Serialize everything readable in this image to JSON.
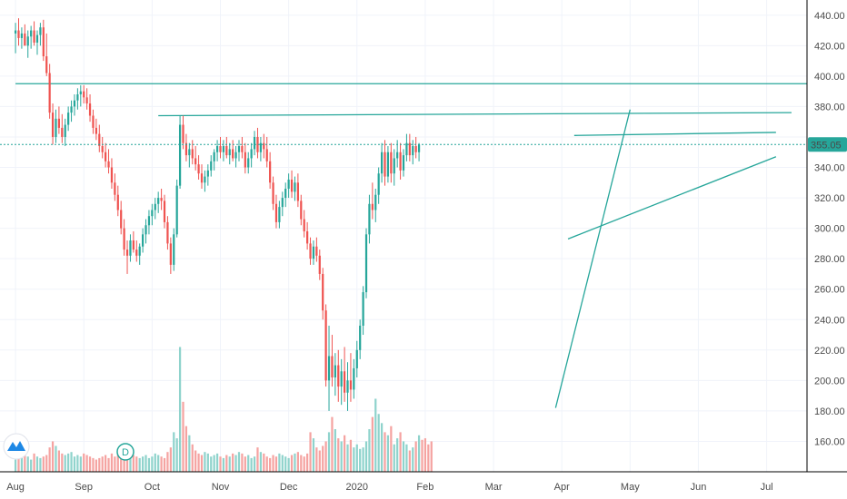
{
  "chart_data": {
    "type": "candlestick",
    "ylim": [
      140,
      450
    ],
    "y_ticks": [
      "440.00",
      "420.00",
      "400.00",
      "380.00",
      "360.00",
      "340.00",
      "320.00",
      "300.00",
      "280.00",
      "260.00",
      "240.00",
      "220.00",
      "200.00",
      "180.00",
      "160.00"
    ],
    "y_tick_values": [
      440,
      420,
      400,
      380,
      360,
      340,
      320,
      300,
      280,
      260,
      240,
      220,
      200,
      180,
      160
    ],
    "x_ticks": [
      "Aug",
      "Sep",
      "Oct",
      "Nov",
      "Dec",
      "2020",
      "Feb",
      "Mar",
      "Apr",
      "May",
      "Jun",
      "Jul"
    ],
    "x_tick_index": [
      0,
      22,
      44,
      66,
      88,
      110,
      132,
      154,
      176,
      198,
      220,
      242
    ],
    "x_domain": [
      -5,
      255
    ],
    "last_price": 355.05,
    "last_price_label": "355.05",
    "colors": {
      "up": "#26a69a",
      "down": "#ef5350",
      "up_vol": "#8fd3cc",
      "down_vol": "#f5a3a1",
      "line": "#26a69a",
      "price_label": "#26a69a",
      "grid": "#f0f3fa",
      "axis": "#000000"
    },
    "candles": [
      {
        "o": 428,
        "h": 435,
        "l": 415,
        "c": 430
      },
      {
        "o": 430,
        "h": 438,
        "l": 420,
        "c": 425
      },
      {
        "o": 425,
        "h": 432,
        "l": 418,
        "c": 428
      },
      {
        "o": 428,
        "h": 434,
        "l": 420,
        "c": 420
      },
      {
        "o": 420,
        "h": 430,
        "l": 412,
        "c": 426
      },
      {
        "o": 426,
        "h": 433,
        "l": 418,
        "c": 430
      },
      {
        "o": 430,
        "h": 436,
        "l": 420,
        "c": 422
      },
      {
        "o": 422,
        "h": 430,
        "l": 414,
        "c": 427
      },
      {
        "o": 427,
        "h": 435,
        "l": 420,
        "c": 432
      },
      {
        "o": 432,
        "h": 437,
        "l": 410,
        "c": 413
      },
      {
        "o": 413,
        "h": 428,
        "l": 400,
        "c": 402
      },
      {
        "o": 402,
        "h": 408,
        "l": 372,
        "c": 376
      },
      {
        "o": 376,
        "h": 382,
        "l": 355,
        "c": 360
      },
      {
        "o": 360,
        "h": 378,
        "l": 356,
        "c": 372
      },
      {
        "o": 372,
        "h": 380,
        "l": 362,
        "c": 366
      },
      {
        "o": 366,
        "h": 375,
        "l": 356,
        "c": 360
      },
      {
        "o": 360,
        "h": 372,
        "l": 354,
        "c": 368
      },
      {
        "o": 368,
        "h": 380,
        "l": 364,
        "c": 376
      },
      {
        "o": 376,
        "h": 384,
        "l": 370,
        "c": 380
      },
      {
        "o": 380,
        "h": 388,
        "l": 374,
        "c": 384
      },
      {
        "o": 384,
        "h": 392,
        "l": 378,
        "c": 388
      },
      {
        "o": 388,
        "h": 394,
        "l": 380,
        "c": 390
      },
      {
        "o": 390,
        "h": 394,
        "l": 382,
        "c": 386
      },
      {
        "o": 386,
        "h": 392,
        "l": 378,
        "c": 382
      },
      {
        "o": 382,
        "h": 388,
        "l": 370,
        "c": 374
      },
      {
        "o": 374,
        "h": 378,
        "l": 362,
        "c": 366
      },
      {
        "o": 366,
        "h": 372,
        "l": 358,
        "c": 362
      },
      {
        "o": 362,
        "h": 368,
        "l": 350,
        "c": 354
      },
      {
        "o": 354,
        "h": 360,
        "l": 346,
        "c": 350
      },
      {
        "o": 350,
        "h": 356,
        "l": 340,
        "c": 344
      },
      {
        "o": 344,
        "h": 352,
        "l": 336,
        "c": 340
      },
      {
        "o": 340,
        "h": 346,
        "l": 326,
        "c": 330
      },
      {
        "o": 330,
        "h": 336,
        "l": 318,
        "c": 322
      },
      {
        "o": 322,
        "h": 328,
        "l": 308,
        "c": 312
      },
      {
        "o": 312,
        "h": 318,
        "l": 296,
        "c": 300
      },
      {
        "o": 300,
        "h": 306,
        "l": 282,
        "c": 286
      },
      {
        "o": 286,
        "h": 292,
        "l": 270,
        "c": 282
      },
      {
        "o": 282,
        "h": 296,
        "l": 278,
        "c": 292
      },
      {
        "o": 292,
        "h": 298,
        "l": 284,
        "c": 286
      },
      {
        "o": 286,
        "h": 292,
        "l": 278,
        "c": 282
      },
      {
        "o": 282,
        "h": 290,
        "l": 276,
        "c": 288
      },
      {
        "o": 288,
        "h": 300,
        "l": 284,
        "c": 296
      },
      {
        "o": 296,
        "h": 306,
        "l": 290,
        "c": 302
      },
      {
        "o": 302,
        "h": 312,
        "l": 296,
        "c": 308
      },
      {
        "o": 308,
        "h": 316,
        "l": 302,
        "c": 312
      },
      {
        "o": 312,
        "h": 320,
        "l": 306,
        "c": 316
      },
      {
        "o": 316,
        "h": 324,
        "l": 310,
        "c": 320
      },
      {
        "o": 320,
        "h": 326,
        "l": 312,
        "c": 318
      },
      {
        "o": 318,
        "h": 322,
        "l": 300,
        "c": 304
      },
      {
        "o": 304,
        "h": 308,
        "l": 286,
        "c": 290
      },
      {
        "o": 290,
        "h": 294,
        "l": 270,
        "c": 276
      },
      {
        "o": 276,
        "h": 300,
        "l": 272,
        "c": 296
      },
      {
        "o": 296,
        "h": 332,
        "l": 294,
        "c": 328
      },
      {
        "o": 328,
        "h": 374,
        "l": 326,
        "c": 368
      },
      {
        "o": 368,
        "h": 374,
        "l": 352,
        "c": 356
      },
      {
        "o": 356,
        "h": 362,
        "l": 344,
        "c": 348
      },
      {
        "o": 348,
        "h": 356,
        "l": 340,
        "c": 352
      },
      {
        "o": 352,
        "h": 358,
        "l": 342,
        "c": 346
      },
      {
        "o": 346,
        "h": 354,
        "l": 338,
        "c": 342
      },
      {
        "o": 342,
        "h": 348,
        "l": 332,
        "c": 336
      },
      {
        "o": 336,
        "h": 342,
        "l": 326,
        "c": 330
      },
      {
        "o": 330,
        "h": 338,
        "l": 324,
        "c": 334
      },
      {
        "o": 334,
        "h": 342,
        "l": 328,
        "c": 338
      },
      {
        "o": 338,
        "h": 348,
        "l": 334,
        "c": 344
      },
      {
        "o": 344,
        "h": 352,
        "l": 338,
        "c": 350
      },
      {
        "o": 350,
        "h": 358,
        "l": 344,
        "c": 354
      },
      {
        "o": 354,
        "h": 360,
        "l": 346,
        "c": 350
      },
      {
        "o": 350,
        "h": 358,
        "l": 344,
        "c": 354
      },
      {
        "o": 354,
        "h": 360,
        "l": 346,
        "c": 348
      },
      {
        "o": 348,
        "h": 356,
        "l": 342,
        "c": 352
      },
      {
        "o": 352,
        "h": 358,
        "l": 344,
        "c": 346
      },
      {
        "o": 346,
        "h": 354,
        "l": 340,
        "c": 350
      },
      {
        "o": 350,
        "h": 358,
        "l": 344,
        "c": 354
      },
      {
        "o": 354,
        "h": 360,
        "l": 346,
        "c": 350
      },
      {
        "o": 350,
        "h": 356,
        "l": 336,
        "c": 340
      },
      {
        "o": 340,
        "h": 350,
        "l": 336,
        "c": 346
      },
      {
        "o": 346,
        "h": 356,
        "l": 340,
        "c": 352
      },
      {
        "o": 352,
        "h": 364,
        "l": 348,
        "c": 360
      },
      {
        "o": 360,
        "h": 366,
        "l": 346,
        "c": 350
      },
      {
        "o": 350,
        "h": 360,
        "l": 344,
        "c": 356
      },
      {
        "o": 356,
        "h": 362,
        "l": 346,
        "c": 352
      },
      {
        "o": 352,
        "h": 360,
        "l": 340,
        "c": 344
      },
      {
        "o": 344,
        "h": 350,
        "l": 326,
        "c": 330
      },
      {
        "o": 330,
        "h": 334,
        "l": 312,
        "c": 316
      },
      {
        "o": 316,
        "h": 322,
        "l": 300,
        "c": 304
      },
      {
        "o": 304,
        "h": 318,
        "l": 300,
        "c": 314
      },
      {
        "o": 314,
        "h": 324,
        "l": 308,
        "c": 320
      },
      {
        "o": 320,
        "h": 330,
        "l": 314,
        "c": 326
      },
      {
        "o": 326,
        "h": 336,
        "l": 320,
        "c": 332
      },
      {
        "o": 332,
        "h": 338,
        "l": 320,
        "c": 324
      },
      {
        "o": 324,
        "h": 334,
        "l": 318,
        "c": 330
      },
      {
        "o": 330,
        "h": 336,
        "l": 314,
        "c": 318
      },
      {
        "o": 318,
        "h": 322,
        "l": 302,
        "c": 306
      },
      {
        "o": 306,
        "h": 312,
        "l": 294,
        "c": 298
      },
      {
        "o": 298,
        "h": 304,
        "l": 286,
        "c": 290
      },
      {
        "o": 290,
        "h": 294,
        "l": 276,
        "c": 280
      },
      {
        "o": 280,
        "h": 292,
        "l": 276,
        "c": 288
      },
      {
        "o": 288,
        "h": 294,
        "l": 278,
        "c": 282
      },
      {
        "o": 282,
        "h": 286,
        "l": 266,
        "c": 270
      },
      {
        "o": 270,
        "h": 274,
        "l": 240,
        "c": 246
      },
      {
        "o": 246,
        "h": 250,
        "l": 196,
        "c": 200
      },
      {
        "o": 200,
        "h": 236,
        "l": 180,
        "c": 216
      },
      {
        "o": 216,
        "h": 230,
        "l": 196,
        "c": 202
      },
      {
        "o": 202,
        "h": 218,
        "l": 190,
        "c": 210
      },
      {
        "o": 210,
        "h": 220,
        "l": 186,
        "c": 196
      },
      {
        "o": 196,
        "h": 214,
        "l": 184,
        "c": 206
      },
      {
        "o": 206,
        "h": 222,
        "l": 186,
        "c": 192
      },
      {
        "o": 192,
        "h": 212,
        "l": 180,
        "c": 200
      },
      {
        "o": 200,
        "h": 218,
        "l": 186,
        "c": 194
      },
      {
        "o": 194,
        "h": 214,
        "l": 188,
        "c": 208
      },
      {
        "o": 208,
        "h": 226,
        "l": 202,
        "c": 220
      },
      {
        "o": 220,
        "h": 240,
        "l": 214,
        "c": 236
      },
      {
        "o": 236,
        "h": 262,
        "l": 230,
        "c": 258
      },
      {
        "o": 258,
        "h": 300,
        "l": 254,
        "c": 296
      },
      {
        "o": 296,
        "h": 322,
        "l": 290,
        "c": 316
      },
      {
        "o": 316,
        "h": 330,
        "l": 306,
        "c": 312
      },
      {
        "o": 312,
        "h": 326,
        "l": 304,
        "c": 322
      },
      {
        "o": 322,
        "h": 340,
        "l": 316,
        "c": 336
      },
      {
        "o": 336,
        "h": 356,
        "l": 330,
        "c": 350
      },
      {
        "o": 350,
        "h": 358,
        "l": 328,
        "c": 334
      },
      {
        "o": 334,
        "h": 354,
        "l": 330,
        "c": 350
      },
      {
        "o": 350,
        "h": 356,
        "l": 330,
        "c": 336
      },
      {
        "o": 336,
        "h": 352,
        "l": 328,
        "c": 346
      },
      {
        "o": 346,
        "h": 358,
        "l": 340,
        "c": 350
      },
      {
        "o": 350,
        "h": 356,
        "l": 332,
        "c": 338
      },
      {
        "o": 338,
        "h": 352,
        "l": 334,
        "c": 348
      },
      {
        "o": 348,
        "h": 362,
        "l": 344,
        "c": 356
      },
      {
        "o": 356,
        "h": 362,
        "l": 344,
        "c": 348
      },
      {
        "o": 348,
        "h": 358,
        "l": 342,
        "c": 354
      },
      {
        "o": 354,
        "h": 360,
        "l": 346,
        "c": 350
      },
      {
        "o": 350,
        "h": 356,
        "l": 344,
        "c": 355
      }
    ],
    "volume": [
      148,
      150,
      149,
      151,
      150,
      148,
      152,
      150,
      149,
      150,
      151,
      156,
      160,
      157,
      154,
      152,
      151,
      152,
      153,
      150,
      151,
      150,
      152,
      151,
      150,
      149,
      148,
      149,
      150,
      151,
      149,
      152,
      150,
      151,
      149,
      150,
      153,
      152,
      151,
      150,
      149,
      150,
      151,
      149,
      150,
      152,
      151,
      150,
      149,
      153,
      156,
      166,
      162,
      222,
      186,
      170,
      164,
      158,
      154,
      152,
      151,
      153,
      152,
      150,
      151,
      152,
      150,
      149,
      151,
      150,
      152,
      151,
      153,
      152,
      150,
      151,
      149,
      150,
      156,
      153,
      152,
      150,
      149,
      151,
      150,
      152,
      151,
      150,
      149,
      151,
      152,
      153,
      151,
      150,
      152,
      166,
      162,
      156,
      154,
      157,
      160,
      166,
      176,
      168,
      162,
      160,
      164,
      158,
      161,
      156,
      158,
      155,
      156,
      160,
      168,
      176,
      188,
      178,
      172,
      166,
      164,
      170,
      158,
      162,
      166,
      160,
      158,
      154,
      156,
      160,
      164,
      161,
      162,
      158,
      160
    ]
  },
  "trendlines": [
    {
      "x1": 0,
      "y1": 395,
      "x2": 255,
      "y2": 395
    },
    {
      "x1": 46,
      "y1": 374,
      "x2": 250,
      "y2": 376
    },
    {
      "x1": 180,
      "y1": 361,
      "x2": 245,
      "y2": 363
    },
    {
      "x1": 178,
      "y1": 293,
      "x2": 245,
      "y2": 347
    },
    {
      "x1": 174,
      "y1": 182,
      "x2": 198,
      "y2": 378
    }
  ],
  "badges": {
    "d_label": "D"
  },
  "icons": {
    "logo": "tradingview-cloud-icon"
  }
}
